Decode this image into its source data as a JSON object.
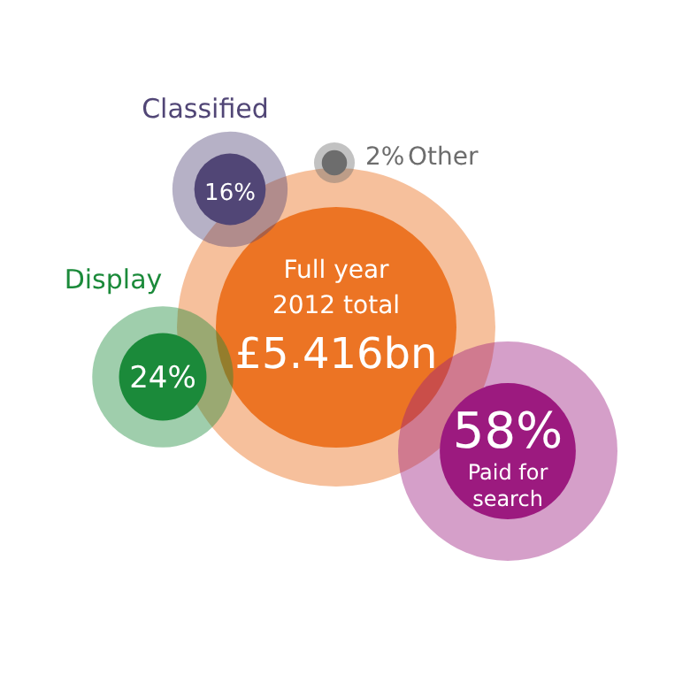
{
  "chart_data": {
    "type": "other",
    "categories": [
      "Paid for search",
      "Display",
      "Classified",
      "Other"
    ],
    "values": [
      58,
      24,
      16,
      2
    ],
    "value_labels": [
      "58%",
      "24%",
      "16%",
      "2%"
    ],
    "colors": [
      "#9c1a7f",
      "#1b8a3a",
      "#514676",
      "#6d6d6d"
    ],
    "annotations": [
      "Full year",
      "2012 total",
      "£5.416bn"
    ],
    "color": "#ec7424"
  }
}
